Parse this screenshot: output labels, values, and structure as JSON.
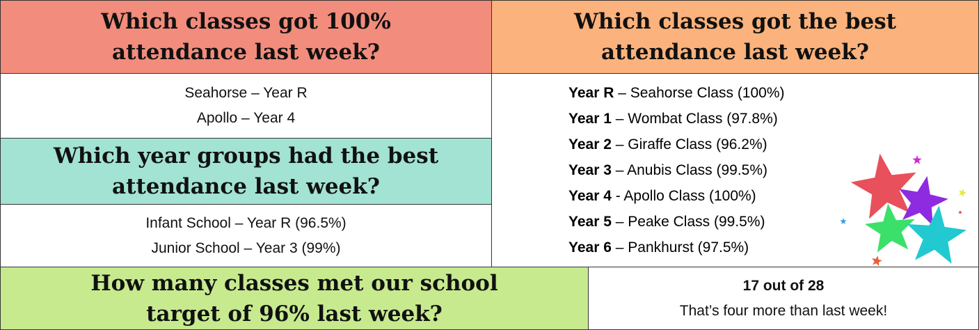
{
  "q1": {
    "title_lines": [
      "Which classes got 100%",
      "attendance last week?"
    ],
    "lines": [
      "Seahorse – Year R",
      "Apollo – Year 4"
    ]
  },
  "q2": {
    "title_lines": [
      "Which classes got the best",
      "attendance last week?"
    ],
    "rows": [
      {
        "year": "Year R",
        "detail": " – Seahorse Class (100%)"
      },
      {
        "year": "Year 1",
        "detail": " – Wombat Class (97.8%)"
      },
      {
        "year": "Year 2",
        "detail": " – Giraffe Class (96.2%)"
      },
      {
        "year": "Year 3",
        "detail": " – Anubis Class (99.5%)"
      },
      {
        "year": "Year 4",
        "detail": " - Apollo Class (100%)"
      },
      {
        "year": "Year 5",
        "detail": " – Peake Class (99.5%)"
      },
      {
        "year": "Year 6",
        "detail": " – Pankhurst (97.5%)"
      }
    ]
  },
  "q3": {
    "title_lines": [
      "Which year groups had the best",
      "attendance last week?"
    ],
    "lines": [
      "Infant School – Year R (96.5%)",
      "Junior School – Year 3 (99%)"
    ]
  },
  "q4": {
    "title_lines": [
      "How many classes met our school",
      "target of 96% last week?"
    ],
    "answer": "17 out of 28",
    "note": "That’s four more than last week!"
  }
}
